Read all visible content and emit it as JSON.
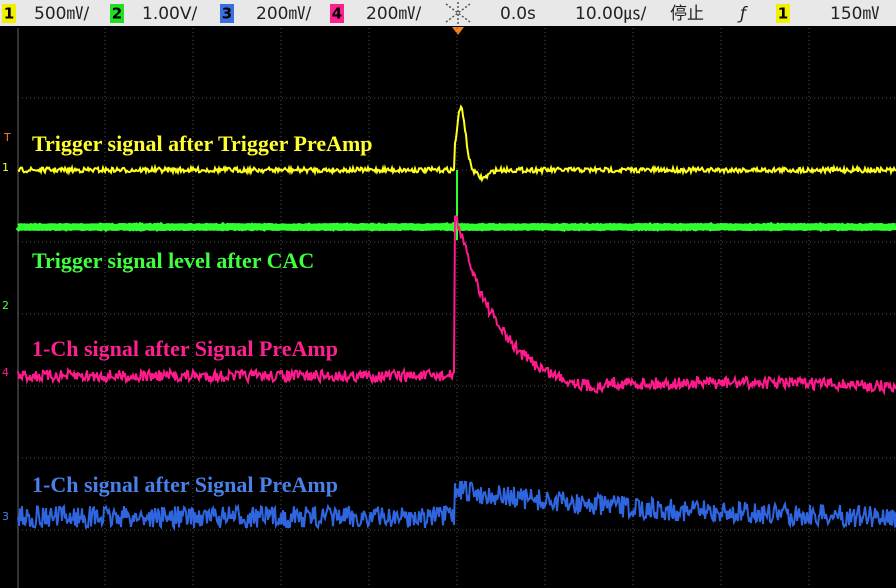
{
  "status_bar": {
    "ch1_scale": "500㎷/",
    "ch2_scale": "1.00V/",
    "ch3_scale": "200㎷/",
    "ch4_scale": "200㎷/",
    "ch1_num": "1",
    "ch2_num": "2",
    "ch3_num": "3",
    "ch4_num": "4",
    "trigger_delay": "0.0s",
    "timebase": "10.00㎲/",
    "run_state": "停止",
    "trigger_edge": "ƒ",
    "trigger_source": "1",
    "trigger_level": "150㎷"
  },
  "traces": [
    {
      "label": "Trigger signal after Trigger PreAmp",
      "marker": "1"
    },
    {
      "label": "Trigger signal level after CAC",
      "marker": "2"
    },
    {
      "label": "1-Ch signal after Signal PreAmp",
      "marker": "4"
    },
    {
      "label": "1-Ch signal after Signal PreAmp",
      "marker": "3"
    }
  ],
  "trigger_marker": "T"
}
